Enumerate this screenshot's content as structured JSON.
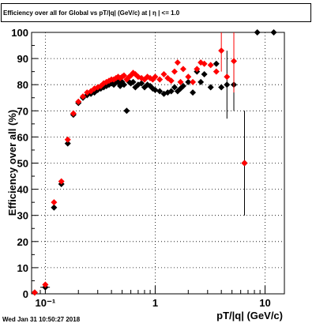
{
  "title": "Efficiency over all for Global vs pT/|q| (GeV/c) at |  η | <= 1.0",
  "footer": "Wed Jan 31 10:50:27 2018",
  "chart_data": {
    "type": "scatter",
    "title": "Efficiency over all for Global vs pT/|q| (GeV/c) at |  η | <= 1.0",
    "xlabel": "pT/|q| (GeV/c)",
    "ylabel": "Efficiency over all (%)",
    "xscale": "log",
    "xlim": [
      0.075,
      15
    ],
    "ylim": [
      0,
      100
    ],
    "grid": true,
    "x_ticks": [
      {
        "v": 0.1,
        "label": "10⁻¹"
      },
      {
        "v": 1,
        "label": "1"
      },
      {
        "v": 10,
        "label": "10"
      }
    ],
    "y_ticks": [
      0,
      10,
      20,
      30,
      40,
      50,
      60,
      70,
      80,
      90,
      100
    ],
    "series": [
      {
        "color": "#000000",
        "marker": "diamond",
        "points": [
          {
            "x": 0.08,
            "y": 0.5
          },
          {
            "x": 0.1,
            "y": 2.5,
            "xe": 0.01,
            "ye": 0.5
          },
          {
            "x": 0.12,
            "y": 33
          },
          {
            "x": 0.14,
            "y": 42
          },
          {
            "x": 0.16,
            "y": 57.5
          },
          {
            "x": 0.18,
            "y": 68.5
          },
          {
            "x": 0.2,
            "y": 73
          },
          {
            "x": 0.22,
            "y": 75
          },
          {
            "x": 0.24,
            "y": 76
          },
          {
            "x": 0.26,
            "y": 76.5
          },
          {
            "x": 0.28,
            "y": 77
          },
          {
            "x": 0.3,
            "y": 78
          },
          {
            "x": 0.32,
            "y": 78.5
          },
          {
            "x": 0.34,
            "y": 79
          },
          {
            "x": 0.36,
            "y": 79.5
          },
          {
            "x": 0.38,
            "y": 80
          },
          {
            "x": 0.4,
            "y": 80.5
          },
          {
            "x": 0.42,
            "y": 80
          },
          {
            "x": 0.44,
            "y": 81
          },
          {
            "x": 0.46,
            "y": 81
          },
          {
            "x": 0.48,
            "y": 79.5
          },
          {
            "x": 0.5,
            "y": 81
          },
          {
            "x": 0.52,
            "y": 80
          },
          {
            "x": 0.55,
            "y": 70
          },
          {
            "x": 0.58,
            "y": 81
          },
          {
            "x": 0.6,
            "y": 80.5
          },
          {
            "x": 0.63,
            "y": 81
          },
          {
            "x": 0.66,
            "y": 79
          },
          {
            "x": 0.7,
            "y": 80
          },
          {
            "x": 0.75,
            "y": 80.5
          },
          {
            "x": 0.8,
            "y": 79
          },
          {
            "x": 0.85,
            "y": 80
          },
          {
            "x": 0.9,
            "y": 79.5
          },
          {
            "x": 0.95,
            "y": 78.5
          },
          {
            "x": 1.0,
            "y": 78
          },
          {
            "x": 1.1,
            "y": 77.5
          },
          {
            "x": 1.2,
            "y": 76.5
          },
          {
            "x": 1.3,
            "y": 77
          },
          {
            "x": 1.4,
            "y": 77.5
          },
          {
            "x": 1.5,
            "y": 79
          },
          {
            "x": 1.6,
            "y": 77.5
          },
          {
            "x": 1.7,
            "y": 78.5
          },
          {
            "x": 1.8,
            "y": 79.5
          },
          {
            "x": 2.0,
            "y": 81
          },
          {
            "x": 2.2,
            "y": 77
          },
          {
            "x": 2.4,
            "y": 85
          },
          {
            "x": 2.6,
            "y": 81
          },
          {
            "x": 2.8,
            "y": 84
          },
          {
            "x": 3.2,
            "y": 79
          },
          {
            "x": 3.6,
            "y": 88
          },
          {
            "x": 4.0,
            "y": 79
          },
          {
            "x": 4.5,
            "y": 80,
            "ye": 13
          },
          {
            "x": 5.2,
            "y": 80,
            "ye": 10
          },
          {
            "x": 6.5,
            "y": 50,
            "ye": 20
          },
          {
            "x": 8.5,
            "y": 100
          },
          {
            "x": 12.0,
            "y": 100
          }
        ]
      },
      {
        "color": "#ff0000",
        "marker": "diamond",
        "points": [
          {
            "x": 0.08,
            "y": 0.5
          },
          {
            "x": 0.1,
            "y": 3.5
          },
          {
            "x": 0.12,
            "y": 35
          },
          {
            "x": 0.14,
            "y": 43
          },
          {
            "x": 0.16,
            "y": 59
          },
          {
            "x": 0.18,
            "y": 69
          },
          {
            "x": 0.2,
            "y": 73.5
          },
          {
            "x": 0.22,
            "y": 75.5
          },
          {
            "x": 0.24,
            "y": 77
          },
          {
            "x": 0.26,
            "y": 77.5
          },
          {
            "x": 0.28,
            "y": 78.5
          },
          {
            "x": 0.3,
            "y": 79
          },
          {
            "x": 0.32,
            "y": 79.5
          },
          {
            "x": 0.34,
            "y": 80.5
          },
          {
            "x": 0.36,
            "y": 81
          },
          {
            "x": 0.38,
            "y": 81.5
          },
          {
            "x": 0.4,
            "y": 82
          },
          {
            "x": 0.42,
            "y": 82
          },
          {
            "x": 0.44,
            "y": 82.5
          },
          {
            "x": 0.46,
            "y": 83
          },
          {
            "x": 0.48,
            "y": 82.5
          },
          {
            "x": 0.5,
            "y": 83
          },
          {
            "x": 0.52,
            "y": 83.5
          },
          {
            "x": 0.55,
            "y": 82
          },
          {
            "x": 0.58,
            "y": 83
          },
          {
            "x": 0.6,
            "y": 83.5
          },
          {
            "x": 0.63,
            "y": 84.5
          },
          {
            "x": 0.66,
            "y": 84
          },
          {
            "x": 0.7,
            "y": 83
          },
          {
            "x": 0.75,
            "y": 82.5
          },
          {
            "x": 0.8,
            "y": 82
          },
          {
            "x": 0.85,
            "y": 83
          },
          {
            "x": 0.9,
            "y": 82.5
          },
          {
            "x": 0.95,
            "y": 82
          },
          {
            "x": 1.0,
            "y": 83
          },
          {
            "x": 1.1,
            "y": 82
          },
          {
            "x": 1.2,
            "y": 84
          },
          {
            "x": 1.3,
            "y": 82.5
          },
          {
            "x": 1.4,
            "y": 81.5
          },
          {
            "x": 1.5,
            "y": 85
          },
          {
            "x": 1.6,
            "y": 88.5
          },
          {
            "x": 1.7,
            "y": 81
          },
          {
            "x": 1.8,
            "y": 86
          },
          {
            "x": 2.0,
            "y": 83
          },
          {
            "x": 2.2,
            "y": 81
          },
          {
            "x": 2.4,
            "y": 86
          },
          {
            "x": 2.6,
            "y": 88.5
          },
          {
            "x": 2.8,
            "y": 88
          },
          {
            "x": 3.2,
            "y": 87.5
          },
          {
            "x": 3.6,
            "y": 85
          },
          {
            "x": 4.0,
            "y": 93,
            "ye": 8
          },
          {
            "x": 4.5,
            "y": 83
          },
          {
            "x": 5.2,
            "y": 89,
            "ye": 12
          },
          {
            "x": 6.5,
            "y": 50
          }
        ]
      }
    ]
  }
}
